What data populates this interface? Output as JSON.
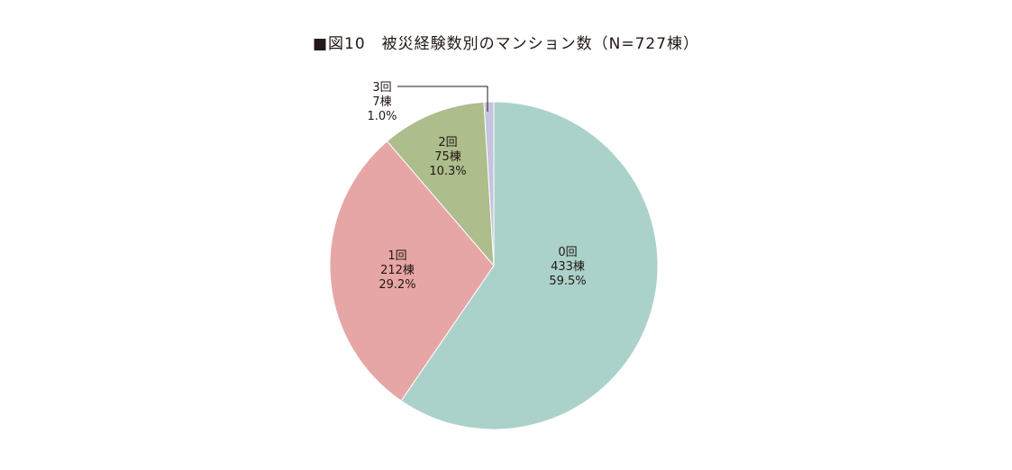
{
  "chart_data": {
    "type": "pie",
    "title": "■図10　被災経験数別のマンション数（N=727棟）",
    "total": 727,
    "slices": [
      {
        "label": "0回",
        "count": 433,
        "count_text": "433棟",
        "percent_text": "59.5%",
        "color": "#abd2ca"
      },
      {
        "label": "1回",
        "count": 212,
        "count_text": "212棟",
        "percent_text": "29.2%",
        "color": "#e7a6a6"
      },
      {
        "label": "2回",
        "count": 75,
        "count_text": "75棟",
        "percent_text": "10.3%",
        "color": "#adbd8c"
      },
      {
        "label": "3回",
        "count": 7,
        "count_text": "7棟",
        "percent_text": "1.0%",
        "color": "#c6c3de"
      }
    ]
  }
}
